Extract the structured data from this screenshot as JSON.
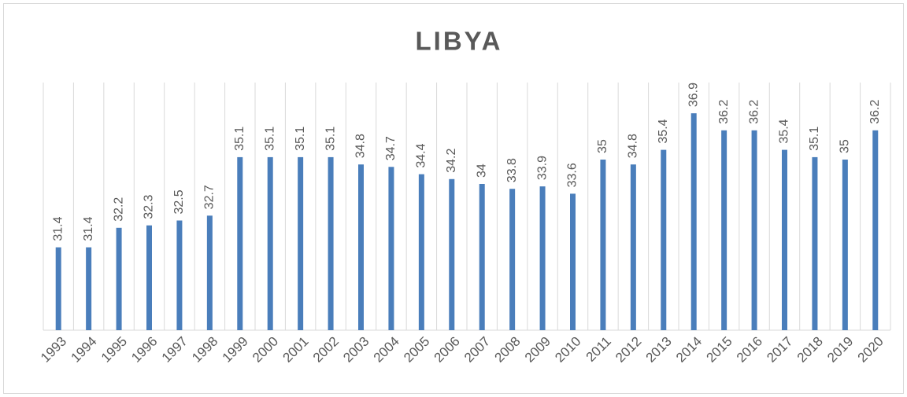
{
  "chart_data": {
    "type": "bar",
    "title": "LIBYA",
    "categories": [
      "1993",
      "1994",
      "1995",
      "1996",
      "1997",
      "1998",
      "1999",
      "2000",
      "2001",
      "2002",
      "2003",
      "2004",
      "2005",
      "2006",
      "2007",
      "2008",
      "2009",
      "2010",
      "2011",
      "2012",
      "2013",
      "2014",
      "2015",
      "2016",
      "2017",
      "2018",
      "2019",
      "2020"
    ],
    "values": [
      31.4,
      31.4,
      32.2,
      32.3,
      32.5,
      32.7,
      35.1,
      35.1,
      35.1,
      35.1,
      34.8,
      34.7,
      34.4,
      34.2,
      34,
      33.8,
      33.9,
      33.6,
      35,
      34.8,
      35.4,
      36.9,
      36.2,
      36.2,
      35.4,
      35.1,
      35,
      36.2
    ],
    "color": "#4a7ebb",
    "ylim": [
      28,
      38
    ]
  }
}
